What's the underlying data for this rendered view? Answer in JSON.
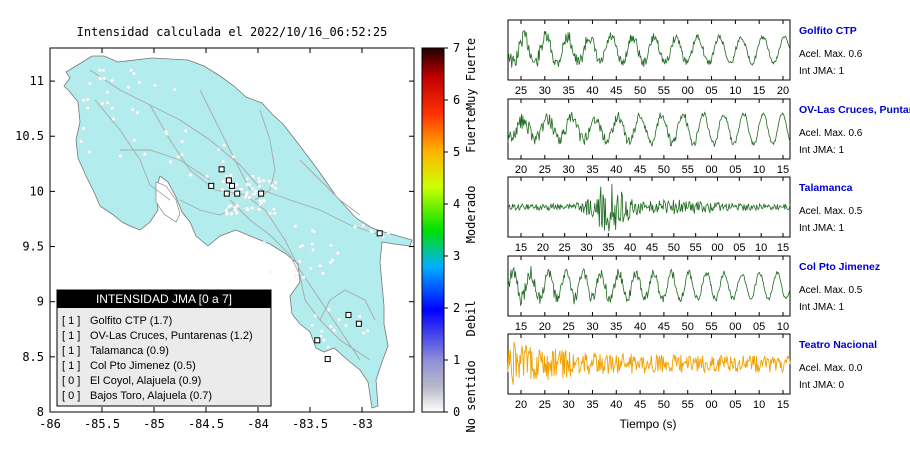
{
  "map": {
    "title": "Intensidad calculada el 2022/10/16_06:52:25",
    "x_ticks": [
      "-86",
      "-85.5",
      "-85",
      "-84.5",
      "-84",
      "-83.5",
      "-83"
    ],
    "y_ticks": [
      "8",
      "8.5",
      "9",
      "9.5",
      "10",
      "10.5",
      "11"
    ],
    "xlim": [
      -86,
      -82.5
    ],
    "ylim": [
      8,
      11.3
    ],
    "land_color": "#b3ecec",
    "station_color": "#ffffff"
  },
  "colorbar": {
    "ticks": [
      "0",
      "1",
      "2",
      "3",
      "4",
      "5",
      "6",
      "7"
    ],
    "labels": [
      "No sentido",
      "Debil",
      "Moderado",
      "Fuerte",
      "Muy Fuerte"
    ],
    "range": [
      0,
      7
    ]
  },
  "legend": {
    "title": "INTENSIDAD JMA [0 a 7]",
    "items": [
      {
        "jma": "[ 1 ]",
        "name": "Golfito CTP (1.7)"
      },
      {
        "jma": "[ 1 ]",
        "name": "OV-Las Cruces, Puntarenas (1.2)"
      },
      {
        "jma": "[ 1 ]",
        "name": "Talamanca (0.9)"
      },
      {
        "jma": "[ 1 ]",
        "name": "Col Pto Jimenez (0.5)"
      },
      {
        "jma": "[ 0 ]",
        "name": "El Coyol, Alajuela (0.9)"
      },
      {
        "jma": "[ 0 ]",
        "name": "Bajos Toro, Alajuela (0.7)"
      }
    ]
  },
  "seismograms": {
    "xlabel": "Tiempo (s)",
    "panels": [
      {
        "station": "Golfito CTP",
        "accel": "Acel. Max. 0.6",
        "int": "Int JMA: 1",
        "color": "#1f6b1f",
        "ticks": [
          "25",
          "30",
          "35",
          "40",
          "45",
          "50",
          "55",
          "00",
          "05",
          "10",
          "15",
          "20"
        ]
      },
      {
        "station": "OV-Las Cruces, Puntar",
        "accel": "Acel. Max. 0.6",
        "int": "Int JMA: 1",
        "color": "#1f6b1f",
        "ticks": [
          "20",
          "25",
          "30",
          "35",
          "40",
          "45",
          "50",
          "55",
          "00",
          "05",
          "10",
          "15"
        ]
      },
      {
        "station": "Talamanca",
        "accel": "Acel. Max. 0.5",
        "int": "Int JMA: 1",
        "color": "#1f6b1f",
        "ticks": [
          "15",
          "20",
          "25",
          "30",
          "35",
          "40",
          "45",
          "50",
          "55",
          "00",
          "05",
          "10",
          "15"
        ]
      },
      {
        "station": "Col Pto Jimenez",
        "accel": "Acel. Max. 0.5",
        "int": "Int JMA: 1",
        "color": "#1f6b1f",
        "ticks": [
          "15",
          "20",
          "25",
          "30",
          "35",
          "40",
          "45",
          "50",
          "55",
          "00",
          "05",
          "10"
        ]
      },
      {
        "station": "Teatro Nacional",
        "accel": "Acel. Max. 0.0",
        "int": "Int JMA: 0",
        "color": "#f2a100",
        "ticks": [
          "20",
          "25",
          "30",
          "35",
          "40",
          "45",
          "50",
          "55",
          "00",
          "05",
          "10",
          "15"
        ]
      }
    ]
  },
  "chart_data": [
    {
      "type": "scatter",
      "title": "Intensidad calculada el 2022/10/16_06:52:25",
      "xlim": [
        -86,
        -82.5
      ],
      "ylim": [
        8,
        11.3
      ],
      "highlighted_stations": [
        {
          "x": -84.35,
          "y": 10.2
        },
        {
          "x": -84.28,
          "y": 10.1
        },
        {
          "x": -84.25,
          "y": 10.05
        },
        {
          "x": -84.45,
          "y": 10.05
        },
        {
          "x": -84.2,
          "y": 9.98
        },
        {
          "x": -84.3,
          "y": 9.98
        },
        {
          "x": -83.97,
          "y": 9.98
        },
        {
          "x": -82.83,
          "y": 9.62
        },
        {
          "x": -83.13,
          "y": 8.88
        },
        {
          "x": -83.03,
          "y": 8.8
        },
        {
          "x": -83.43,
          "y": 8.65
        },
        {
          "x": -83.33,
          "y": 8.48
        }
      ]
    },
    {
      "type": "heatmap",
      "title": "",
      "colorbar_range": [
        0,
        7
      ],
      "labels": [
        "No sentido",
        "Debil",
        "Moderado",
        "Fuerte",
        "Muy Fuerte"
      ]
    },
    {
      "type": "line",
      "xlabel": "Tiempo (s)",
      "series": [
        {
          "name": "Golfito CTP",
          "acel_max": 0.6,
          "int_jma": 1
        },
        {
          "name": "OV-Las Cruces, Puntar",
          "acel_max": 0.6,
          "int_jma": 1
        },
        {
          "name": "Talamanca",
          "acel_max": 0.5,
          "int_jma": 1
        },
        {
          "name": "Col Pto Jimenez",
          "acel_max": 0.5,
          "int_jma": 1
        },
        {
          "name": "Teatro Nacional",
          "acel_max": 0.0,
          "int_jma": 0
        }
      ]
    }
  ]
}
